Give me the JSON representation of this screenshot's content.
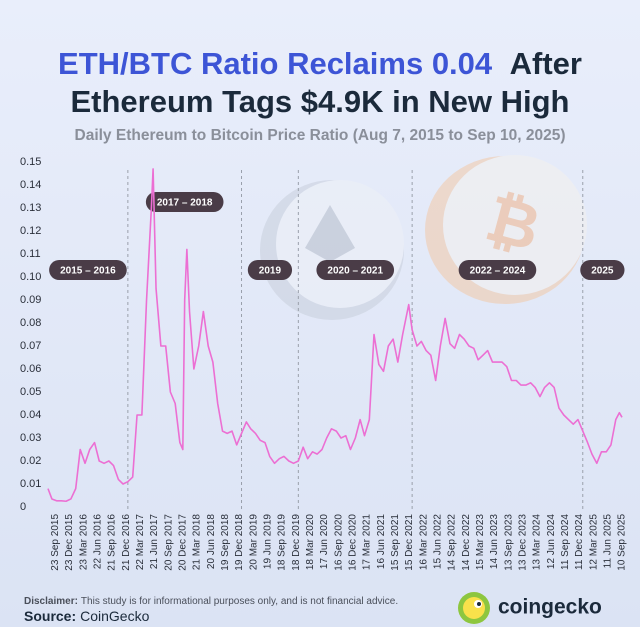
{
  "chart_data": {
    "type": "line",
    "title": [
      {
        "text": "ETH/BTC Ratio Reclaims 0.04",
        "color": "#3d55d6"
      },
      {
        "text": "After",
        "color": "#1b2a3b"
      },
      {
        "text": "Ethereum Tags $4.9K in New High",
        "color": "#1b2a3b"
      }
    ],
    "subtitle": "Daily Ethereum to Bitcoin Price Ratio (Aug 7, 2015 to Sep 10, 2025)",
    "color": "#ec6fd3",
    "x": [
      "2015-08-07",
      "2015-09-01",
      "2015-10-01",
      "2015-11-01",
      "2015-12-01",
      "2016-01-01",
      "2016-02-01",
      "2016-03-01",
      "2016-04-01",
      "2016-05-01",
      "2016-06-01",
      "2016-07-01",
      "2016-08-01",
      "2016-09-01",
      "2016-10-01",
      "2016-11-01",
      "2016-12-01",
      "2017-01-01",
      "2017-02-01",
      "2017-03-01",
      "2017-04-01",
      "2017-05-01",
      "2017-06-01",
      "2017-06-12",
      "2017-07-01",
      "2017-08-01",
      "2017-09-01",
      "2017-10-01",
      "2017-11-01",
      "2017-12-01",
      "2017-12-20",
      "2018-01-01",
      "2018-01-15",
      "2018-02-01",
      "2018-03-01",
      "2018-04-01",
      "2018-05-01",
      "2018-06-01",
      "2018-07-01",
      "2018-08-01",
      "2018-09-01",
      "2018-10-01",
      "2018-11-01",
      "2018-12-01",
      "2019-01-01",
      "2019-02-01",
      "2019-03-01",
      "2019-04-01",
      "2019-05-01",
      "2019-06-01",
      "2019-07-01",
      "2019-08-01",
      "2019-09-01",
      "2019-10-01",
      "2019-11-01",
      "2019-12-01",
      "2020-01-01",
      "2020-02-01",
      "2020-03-01",
      "2020-04-01",
      "2020-05-01",
      "2020-06-01",
      "2020-07-01",
      "2020-08-01",
      "2020-09-01",
      "2020-10-01",
      "2020-11-01",
      "2020-12-01",
      "2021-01-01",
      "2021-02-01",
      "2021-03-01",
      "2021-04-01",
      "2021-05-01",
      "2021-06-01",
      "2021-07-01",
      "2021-08-01",
      "2021-09-01",
      "2021-10-01",
      "2021-11-01",
      "2021-12-01",
      "2021-12-10",
      "2022-01-01",
      "2022-02-01",
      "2022-03-01",
      "2022-04-01",
      "2022-05-01",
      "2022-06-01",
      "2022-07-01",
      "2022-08-01",
      "2022-09-01",
      "2022-10-01",
      "2022-11-01",
      "2022-12-01",
      "2023-01-01",
      "2023-02-01",
      "2023-03-01",
      "2023-04-01",
      "2023-05-01",
      "2023-06-01",
      "2023-07-01",
      "2023-08-01",
      "2023-09-01",
      "2023-10-01",
      "2023-11-01",
      "2023-12-01",
      "2024-01-01",
      "2024-02-01",
      "2024-03-01",
      "2024-04-01",
      "2024-05-01",
      "2024-06-01",
      "2024-07-01",
      "2024-08-01",
      "2024-09-01",
      "2024-10-01",
      "2024-11-01",
      "2024-12-01",
      "2025-01-01",
      "2025-02-01",
      "2025-03-01",
      "2025-04-01",
      "2025-05-01",
      "2025-06-01",
      "2025-07-01",
      "2025-08-01",
      "2025-08-24",
      "2025-09-10"
    ],
    "values": [
      0.008,
      0.0035,
      0.0027,
      0.0027,
      0.0025,
      0.0035,
      0.008,
      0.025,
      0.019,
      0.025,
      0.028,
      0.02,
      0.019,
      0.02,
      0.018,
      0.012,
      0.01,
      0.011,
      0.013,
      0.04,
      0.04,
      0.09,
      0.13,
      0.147,
      0.095,
      0.07,
      0.07,
      0.05,
      0.045,
      0.028,
      0.025,
      0.09,
      0.112,
      0.085,
      0.06,
      0.07,
      0.085,
      0.07,
      0.063,
      0.045,
      0.033,
      0.032,
      0.033,
      0.027,
      0.032,
      0.037,
      0.034,
      0.032,
      0.029,
      0.028,
      0.022,
      0.019,
      0.021,
      0.022,
      0.02,
      0.019,
      0.02,
      0.026,
      0.021,
      0.024,
      0.023,
      0.025,
      0.03,
      0.034,
      0.033,
      0.03,
      0.031,
      0.025,
      0.03,
      0.038,
      0.031,
      0.038,
      0.075,
      0.062,
      0.059,
      0.07,
      0.073,
      0.063,
      0.075,
      0.085,
      0.088,
      0.077,
      0.07,
      0.072,
      0.068,
      0.066,
      0.055,
      0.07,
      0.082,
      0.071,
      0.069,
      0.075,
      0.073,
      0.07,
      0.069,
      0.064,
      0.066,
      0.068,
      0.063,
      0.063,
      0.063,
      0.061,
      0.055,
      0.055,
      0.053,
      0.053,
      0.054,
      0.052,
      0.048,
      0.052,
      0.054,
      0.052,
      0.043,
      0.04,
      0.038,
      0.036,
      0.038,
      0.033,
      0.028,
      0.023,
      0.019,
      0.024,
      0.024,
      0.027,
      0.038,
      0.041,
      0.039
    ],
    "xlim": [
      "2015-08-07",
      "2025-09-10"
    ],
    "xticks": [
      {
        "value": "2015-09-23",
        "label": "23 Sep 2015"
      },
      {
        "value": "2015-12-23",
        "label": "23 Dec 2015"
      },
      {
        "value": "2016-03-23",
        "label": "23 Mar 2016"
      },
      {
        "value": "2016-06-22",
        "label": "22 Jun 2016"
      },
      {
        "value": "2016-09-21",
        "label": "21 Sep 2016"
      },
      {
        "value": "2016-12-21",
        "label": "21 Dec 2016"
      },
      {
        "value": "2017-03-22",
        "label": "22 Mar 2017"
      },
      {
        "value": "2017-06-21",
        "label": "21 Jun 2017"
      },
      {
        "value": "2017-09-20",
        "label": "20 Sep 2017"
      },
      {
        "value": "2017-12-20",
        "label": "20 Dec 2017"
      },
      {
        "value": "2018-03-21",
        "label": "21 Mar 2018"
      },
      {
        "value": "2018-06-20",
        "label": "20 Jun 2018"
      },
      {
        "value": "2018-09-19",
        "label": "19 Sep 2018"
      },
      {
        "value": "2018-12-19",
        "label": "19 Dec 2018"
      },
      {
        "value": "2019-03-20",
        "label": "20 Mar 2019"
      },
      {
        "value": "2019-06-19",
        "label": "19 Jun 2019"
      },
      {
        "value": "2019-09-18",
        "label": "18 Sep 2019"
      },
      {
        "value": "2019-12-18",
        "label": "18 Dec 2019"
      },
      {
        "value": "2020-03-18",
        "label": "18 Mar 2020"
      },
      {
        "value": "2020-06-17",
        "label": "17 Jun 2020"
      },
      {
        "value": "2020-09-16",
        "label": "16 Sep 2020"
      },
      {
        "value": "2020-12-16",
        "label": "16 Dec 2020"
      },
      {
        "value": "2021-03-17",
        "label": "17 Mar 2021"
      },
      {
        "value": "2021-06-16",
        "label": "16 Jun 2021"
      },
      {
        "value": "2021-09-15",
        "label": "15 Sep 2021"
      },
      {
        "value": "2021-12-15",
        "label": "15 Dec 2021"
      },
      {
        "value": "2022-03-16",
        "label": "16 Mar 2022"
      },
      {
        "value": "2022-06-15",
        "label": "15 Jun 2022"
      },
      {
        "value": "2022-09-14",
        "label": "14 Sep 2022"
      },
      {
        "value": "2022-12-14",
        "label": "14 Dec 2022"
      },
      {
        "value": "2023-03-15",
        "label": "15 Mar 2023"
      },
      {
        "value": "2023-06-14",
        "label": "14 Jun 2023"
      },
      {
        "value": "2023-09-13",
        "label": "13 Sep 2023"
      },
      {
        "value": "2023-12-13",
        "label": "13 Dec 2023"
      },
      {
        "value": "2024-03-13",
        "label": "13 Mar 2024"
      },
      {
        "value": "2024-06-12",
        "label": "12 Jun 2024"
      },
      {
        "value": "2024-09-11",
        "label": "11 Sep 2024"
      },
      {
        "value": "2024-12-11",
        "label": "11 Dec 2024"
      },
      {
        "value": "2025-03-12",
        "label": "12 Mar 2025"
      },
      {
        "value": "2025-06-11",
        "label": "11 Jun 2025"
      },
      {
        "value": "2025-09-10",
        "label": "10 Sep 2025"
      }
    ],
    "ylim": [
      0,
      0.15
    ],
    "yticks": [
      0,
      0.01,
      0.02,
      0.03,
      0.04,
      0.05,
      0.06,
      0.07,
      0.08,
      0.09,
      {
        "value": 0.1,
        "label": "0.10"
      },
      0.11,
      0.12,
      0.13,
      0.14,
      0.15
    ],
    "grid": false,
    "periods": [
      {
        "label": "2015 – 2016",
        "start": "2015-08-07"
      },
      {
        "label": "2017 – 2018",
        "start": "2017-01-01"
      },
      {
        "label": "2019",
        "start": "2019-01-01"
      },
      {
        "label": "2020 – 2021",
        "start": "2020-01-01"
      },
      {
        "label": "2022 – 2024",
        "start": "2022-01-01"
      },
      {
        "label": "2025",
        "start": "2025-01-01"
      }
    ],
    "disclaimer": {
      "label": "Disclaimer:",
      "text": "This study is for informational purposes only, and is not financial advice."
    },
    "source": {
      "label": "Source:",
      "text": "CoinGecko"
    },
    "brand": "coingecko"
  }
}
